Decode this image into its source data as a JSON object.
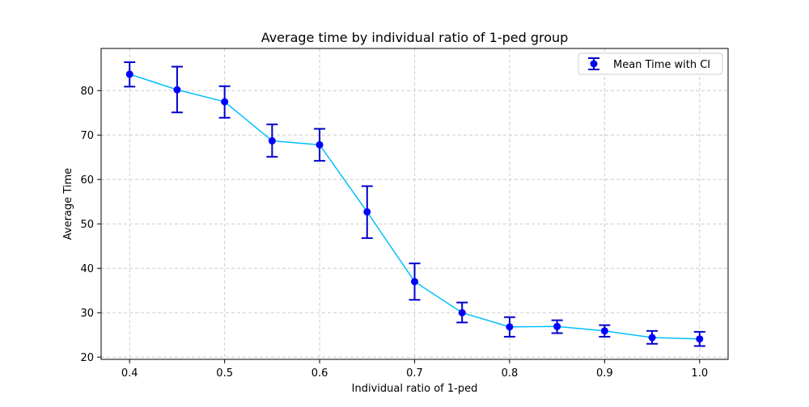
{
  "chart_data": {
    "type": "line",
    "title": "Average time by individual ratio of 1-ped group",
    "xlabel": "Individual ratio of 1-ped",
    "ylabel": "Average Time",
    "xlim": [
      0.37,
      1.03
    ],
    "ylim": [
      19.5,
      89.5
    ],
    "x_ticks": [
      0.4,
      0.5,
      0.6,
      0.7,
      0.8,
      0.9,
      1.0
    ],
    "x_tick_labels": [
      "0.4",
      "0.5",
      "0.6",
      "0.7",
      "0.8",
      "0.9",
      "1.0"
    ],
    "y_ticks": [
      20,
      30,
      40,
      50,
      60,
      70,
      80
    ],
    "y_tick_labels": [
      "20",
      "30",
      "40",
      "50",
      "60",
      "70",
      "80"
    ],
    "grid": true,
    "legend_position": "top-right",
    "series": [
      {
        "name": "Mean Time with CI",
        "line_color": "#00bfff",
        "marker_color": "#0000ff",
        "errorbar_color": "#0000cd",
        "x": [
          0.4,
          0.45,
          0.5,
          0.55,
          0.6,
          0.65,
          0.7,
          0.75,
          0.8,
          0.85,
          0.9,
          0.95,
          1.0
        ],
        "y": [
          83.7,
          80.2,
          77.5,
          68.7,
          67.8,
          52.7,
          37.0,
          30.0,
          26.8,
          26.9,
          25.9,
          24.4,
          24.1
        ],
        "ci_lower": [
          80.9,
          75.1,
          73.9,
          65.1,
          64.2,
          46.8,
          32.9,
          27.8,
          24.6,
          25.4,
          24.6,
          23.0,
          22.5
        ],
        "ci_upper": [
          86.4,
          85.4,
          81.0,
          72.4,
          71.4,
          58.5,
          41.1,
          32.3,
          29.0,
          28.3,
          27.2,
          25.9,
          25.7
        ]
      }
    ]
  }
}
